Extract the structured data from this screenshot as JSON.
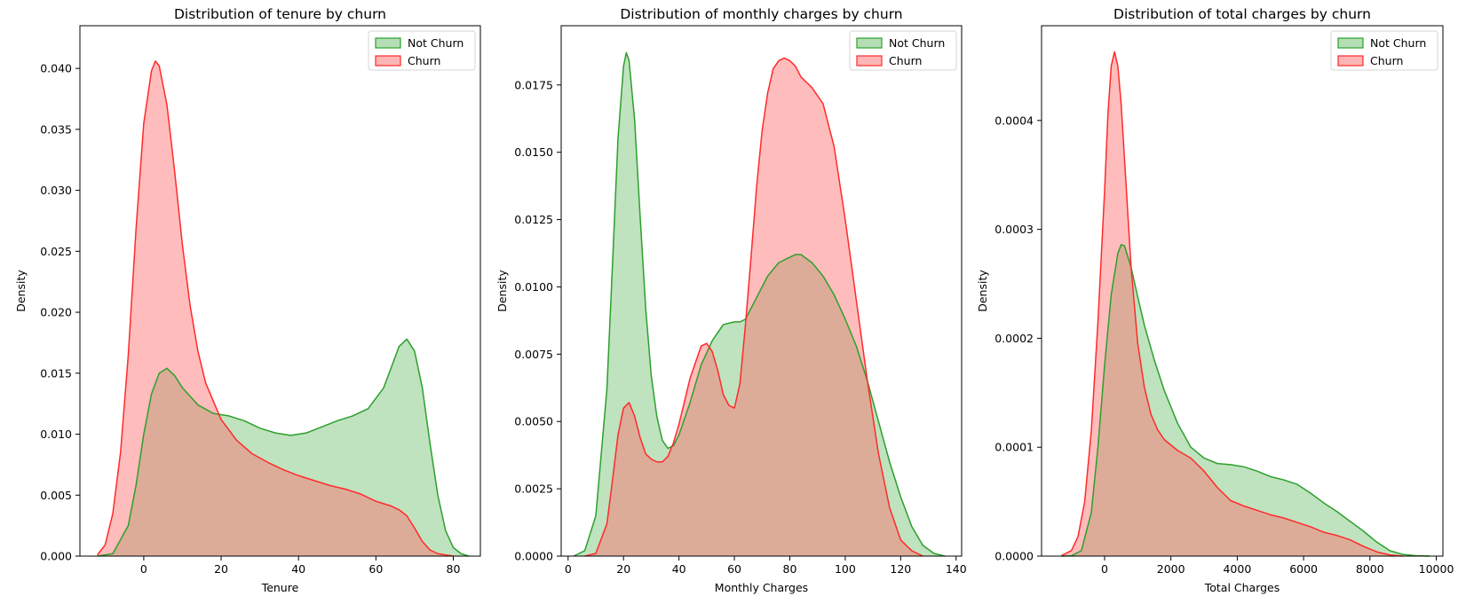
{
  "colors": {
    "not_churn_line": "#2ca02c",
    "not_churn_fill": "#2ca02c",
    "churn_line": "#ff2a2a",
    "churn_fill": "#ff6b6b"
  },
  "chart_data": [
    {
      "type": "area",
      "title": "Distribution of tenure by churn",
      "xlabel": "Tenure",
      "ylabel": "Density",
      "xlim": [
        -16.5,
        87
      ],
      "ylim": [
        0,
        0.0435
      ],
      "xticks": [
        0,
        20,
        40,
        60,
        80
      ],
      "xtick_labels": [
        "0",
        "20",
        "40",
        "60",
        "80"
      ],
      "yticks": [
        0,
        0.005,
        0.01,
        0.015,
        0.02,
        0.025,
        0.03,
        0.035,
        0.04
      ],
      "ytick_labels": [
        "0.000",
        "0.005",
        "0.010",
        "0.015",
        "0.020",
        "0.025",
        "0.030",
        "0.035",
        "0.040"
      ],
      "grid": false,
      "legend_position": "top-right",
      "series": [
        {
          "name": "Not Churn",
          "x": [
            -12,
            -8,
            -4,
            -2,
            0,
            2,
            4,
            6,
            8,
            10,
            14,
            18,
            22,
            26,
            30,
            34,
            38,
            42,
            46,
            50,
            54,
            58,
            62,
            64,
            66,
            68,
            70,
            72,
            74,
            76,
            78,
            80,
            82,
            84
          ],
          "y": [
            0,
            0.0002,
            0.0025,
            0.0058,
            0.01,
            0.0133,
            0.015,
            0.0154,
            0.0148,
            0.0138,
            0.0124,
            0.0117,
            0.0115,
            0.0111,
            0.0105,
            0.0101,
            0.0099,
            0.0101,
            0.0106,
            0.0111,
            0.0115,
            0.0121,
            0.0138,
            0.0155,
            0.0172,
            0.0178,
            0.0168,
            0.0138,
            0.0092,
            0.005,
            0.0021,
            0.0007,
            0.0002,
            0
          ]
        },
        {
          "name": "Churn",
          "x": [
            -12,
            -10,
            -8,
            -6,
            -4,
            -2,
            0,
            2,
            3,
            4,
            6,
            8,
            10,
            12,
            14,
            16,
            20,
            24,
            28,
            32,
            36,
            40,
            44,
            48,
            52,
            56,
            60,
            64,
            66,
            68,
            70,
            72,
            74,
            76,
            78,
            80
          ],
          "y": [
            0.0001,
            0.0009,
            0.0035,
            0.0085,
            0.0165,
            0.0268,
            0.0355,
            0.0398,
            0.0406,
            0.0402,
            0.037,
            0.0315,
            0.0255,
            0.0205,
            0.0168,
            0.0142,
            0.0112,
            0.0095,
            0.0084,
            0.0077,
            0.0071,
            0.0066,
            0.0062,
            0.0058,
            0.0055,
            0.0051,
            0.0045,
            0.0041,
            0.0038,
            0.0033,
            0.0023,
            0.0012,
            0.0005,
            0.0002,
            0.0001,
            0
          ]
        }
      ]
    },
    {
      "type": "area",
      "title": "Distribution of monthly charges by churn",
      "xlabel": "Monthly Charges",
      "ylabel": "Density",
      "xlim": [
        -2.5,
        142
      ],
      "ylim": [
        0,
        0.0197
      ],
      "xticks": [
        0,
        20,
        40,
        60,
        80,
        100,
        120,
        140
      ],
      "xtick_labels": [
        "0",
        "20",
        "40",
        "60",
        "80",
        "100",
        "120",
        "140"
      ],
      "yticks": [
        0,
        0.0025,
        0.005,
        0.0075,
        0.01,
        0.0125,
        0.015,
        0.0175
      ],
      "ytick_labels": [
        "0.0000",
        "0.0025",
        "0.0050",
        "0.0075",
        "0.0100",
        "0.0125",
        "0.0150",
        "0.0175"
      ],
      "grid": false,
      "legend_position": "top-right",
      "series": [
        {
          "name": "Not Churn",
          "x": [
            2,
            6,
            10,
            14,
            16,
            18,
            20,
            21,
            22,
            24,
            26,
            28,
            30,
            32,
            34,
            36,
            38,
            40,
            44,
            48,
            52,
            56,
            60,
            62,
            64,
            68,
            72,
            76,
            80,
            82,
            84,
            88,
            92,
            96,
            100,
            104,
            108,
            112,
            116,
            120,
            124,
            128,
            132,
            136
          ],
          "y": [
            0,
            0.0002,
            0.0015,
            0.0062,
            0.0108,
            0.0155,
            0.0182,
            0.0187,
            0.0184,
            0.0162,
            0.0126,
            0.0092,
            0.0067,
            0.0052,
            0.0043,
            0.004,
            0.0041,
            0.0045,
            0.0057,
            0.0071,
            0.008,
            0.0086,
            0.0087,
            0.0087,
            0.0088,
            0.0096,
            0.0104,
            0.0109,
            0.0111,
            0.0112,
            0.0112,
            0.0109,
            0.0104,
            0.0097,
            0.0088,
            0.0078,
            0.0065,
            0.005,
            0.0035,
            0.0022,
            0.0011,
            0.0004,
            0.0001,
            0
          ]
        },
        {
          "name": "Churn",
          "x": [
            6,
            10,
            14,
            16,
            18,
            20,
            22,
            24,
            26,
            28,
            30,
            32,
            34,
            36,
            38,
            40,
            44,
            48,
            50,
            52,
            54,
            56,
            58,
            60,
            62,
            64,
            66,
            68,
            70,
            72,
            74,
            76,
            78,
            80,
            82,
            84,
            86,
            88,
            92,
            96,
            100,
            104,
            108,
            112,
            116,
            120,
            124,
            128
          ],
          "y": [
            0,
            0.0001,
            0.0012,
            0.0028,
            0.0045,
            0.0055,
            0.0057,
            0.0052,
            0.0044,
            0.0038,
            0.0036,
            0.0035,
            0.0035,
            0.0037,
            0.0042,
            0.0049,
            0.0066,
            0.0078,
            0.0079,
            0.0076,
            0.0069,
            0.006,
            0.0056,
            0.0055,
            0.0064,
            0.0086,
            0.0111,
            0.0137,
            0.0158,
            0.0172,
            0.0181,
            0.0184,
            0.0185,
            0.0184,
            0.0182,
            0.0178,
            0.0176,
            0.0174,
            0.0168,
            0.0152,
            0.0125,
            0.0095,
            0.0065,
            0.0038,
            0.0018,
            0.0006,
            0.0002,
            0
          ]
        }
      ]
    },
    {
      "type": "area",
      "title": "Distribution of total charges by churn",
      "xlabel": "Total Charges",
      "ylabel": "Density",
      "xlim": [
        -1900,
        10200
      ],
      "ylim": [
        0,
        0.000487
      ],
      "xticks": [
        0,
        2000,
        4000,
        6000,
        8000,
        10000
      ],
      "xtick_labels": [
        "0",
        "2000",
        "4000",
        "6000",
        "8000",
        "10000"
      ],
      "yticks": [
        0,
        0.0001,
        0.0002,
        0.0003,
        0.0004
      ],
      "ytick_labels": [
        "0.0000",
        "0.0001",
        "0.0002",
        "0.0003",
        "0.0004"
      ],
      "grid": false,
      "legend_position": "top-right",
      "series": [
        {
          "name": "Not Churn",
          "x": [
            -1300,
            -1000,
            -700,
            -400,
            -200,
            0,
            200,
            400,
            500,
            600,
            800,
            1000,
            1200,
            1500,
            1800,
            2200,
            2600,
            3000,
            3400,
            3800,
            4200,
            4600,
            5000,
            5400,
            5800,
            6200,
            6600,
            7000,
            7400,
            7800,
            8200,
            8600,
            9000,
            9400,
            9800
          ],
          "y": [
            0,
            3e-07,
            5e-06,
            4e-05,
            0.0001,
            0.000175,
            0.00024,
            0.000278,
            0.000286,
            0.000285,
            0.000265,
            0.000238,
            0.000212,
            0.00018,
            0.000152,
            0.000122,
            0.0001,
            9e-05,
            8.5e-05,
            8.4e-05,
            8.2e-05,
            7.8e-05,
            7.3e-05,
            7e-05,
            6.6e-05,
            5.8e-05,
            4.9e-05,
            4.1e-05,
            3.2e-05,
            2.3e-05,
            1.3e-05,
            5e-06,
            1.5e-06,
            3e-07,
            0
          ]
        },
        {
          "name": "Churn",
          "x": [
            -1300,
            -1000,
            -800,
            -600,
            -400,
            -200,
            0,
            100,
            200,
            300,
            400,
            500,
            600,
            800,
            1000,
            1200,
            1400,
            1600,
            1800,
            2200,
            2600,
            3000,
            3400,
            3800,
            4200,
            4600,
            5000,
            5400,
            5800,
            6200,
            6600,
            7000,
            7400,
            7800,
            8200,
            8600,
            9000
          ],
          "y": [
            5e-07,
            5e-06,
            1.8e-05,
            5e-05,
            0.000115,
            0.000215,
            0.000335,
            0.000405,
            0.00045,
            0.000463,
            0.00045,
            0.000415,
            0.000365,
            0.000265,
            0.000195,
            0.000155,
            0.00013,
            0.000116,
            0.000107,
            9.7e-05,
            9e-05,
            7.8e-05,
            6.3e-05,
            5.1e-05,
            4.6e-05,
            4.2e-05,
            3.8e-05,
            3.5e-05,
            3.1e-05,
            2.7e-05,
            2.2e-05,
            1.9e-05,
            1.5e-05,
            9e-06,
            4e-06,
            1e-06,
            0
          ]
        }
      ]
    }
  ]
}
